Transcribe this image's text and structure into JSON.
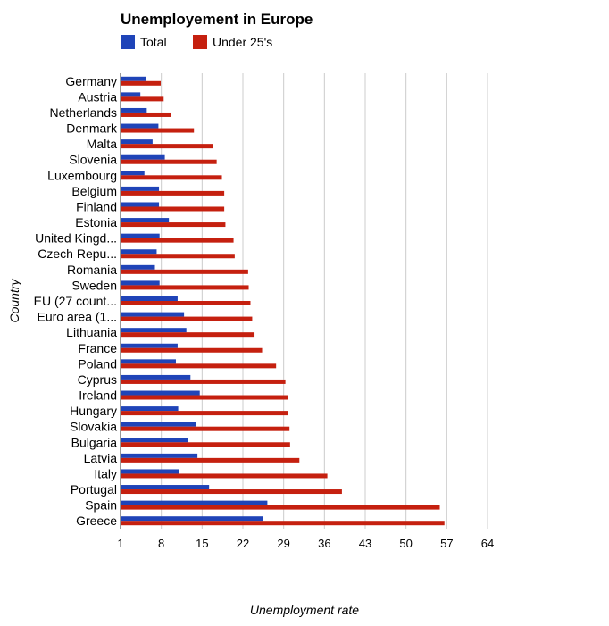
{
  "chart_data": {
    "type": "bar",
    "orientation": "horizontal",
    "title": "Unemployement in Europe",
    "xlabel": "Unemployment rate",
    "ylabel": "Country",
    "legend_position": "top",
    "grid": true,
    "xlim": [
      1,
      64
    ],
    "xticks": [
      1,
      8,
      15,
      22,
      29,
      36,
      43,
      50,
      57,
      64
    ],
    "categories": [
      "Germany",
      "Austria",
      "Netherlands",
      "Denmark",
      "Malta",
      "Slovenia",
      "Luxembourg",
      "Belgium",
      "Finland",
      "Estonia",
      "United Kingd...",
      "Czech Repu...",
      "Romania",
      "Sweden",
      "EU (27 count...",
      "Euro area (1...",
      "Lithuania",
      "France",
      "Poland",
      "Cyprus",
      "Ireland",
      "Hungary",
      "Slovakia",
      "Bulgaria",
      "Latvia",
      "Italy",
      "Portugal",
      "Spain",
      "Greece"
    ],
    "series": [
      {
        "name": "Total",
        "color": "#1f44b8",
        "values": [
          5.3,
          4.4,
          5.5,
          7.5,
          6.5,
          8.6,
          5.1,
          7.6,
          7.6,
          9.3,
          7.7,
          7.2,
          6.9,
          7.7,
          10.8,
          11.9,
          12.3,
          10.8,
          10.5,
          13.0,
          14.6,
          10.9,
          14.0,
          12.6,
          14.2,
          11.1,
          16.2,
          26.2,
          25.4
        ]
      },
      {
        "name": "Under 25's",
        "color": "#c5200f",
        "values": [
          7.9,
          8.4,
          9.6,
          13.6,
          16.8,
          17.5,
          18.4,
          18.8,
          18.8,
          19.0,
          20.4,
          20.6,
          22.9,
          23.0,
          23.3,
          23.6,
          24.0,
          25.3,
          27.7,
          29.3,
          29.8,
          29.8,
          30.0,
          30.1,
          31.7,
          36.5,
          39.0,
          55.8,
          56.6
        ]
      }
    ]
  }
}
